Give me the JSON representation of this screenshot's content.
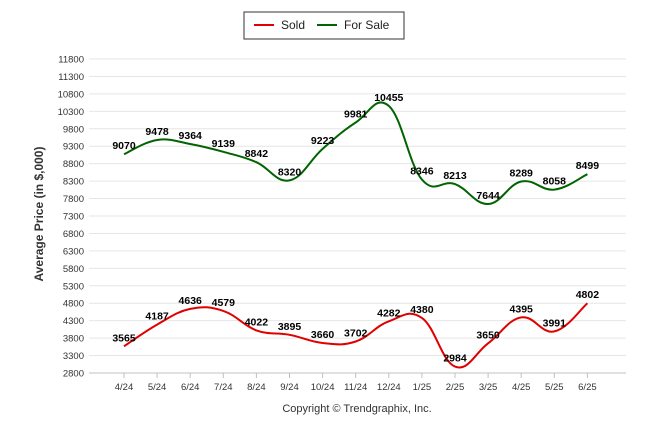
{
  "chart_data": {
    "type": "line",
    "categories": [
      "4/24",
      "5/24",
      "6/24",
      "7/24",
      "8/24",
      "9/24",
      "10/24",
      "11/24",
      "12/24",
      "1/25",
      "2/25",
      "3/25",
      "4/25",
      "5/25",
      "6/25"
    ],
    "series": [
      {
        "name": "Sold",
        "color": "#e00000",
        "values": [
          3565,
          4187,
          4636,
          4579,
          4022,
          3895,
          3660,
          3702,
          4282,
          4380,
          2984,
          3650,
          4395,
          3991,
          4802
        ]
      },
      {
        "name": "For Sale",
        "color": "#006400",
        "values": [
          9070,
          9478,
          9364,
          9139,
          8842,
          8320,
          9223,
          9981,
          10455,
          8346,
          8213,
          7644,
          8289,
          8058,
          8499
        ]
      }
    ],
    "ylabel": "Average Price (in $,000)",
    "xlabel": "",
    "ylim": [
      2800,
      11800
    ],
    "ytick_step": 500,
    "grid": true,
    "legend": "top-center",
    "footer": "Copyright © Trendgraphix, Inc."
  }
}
